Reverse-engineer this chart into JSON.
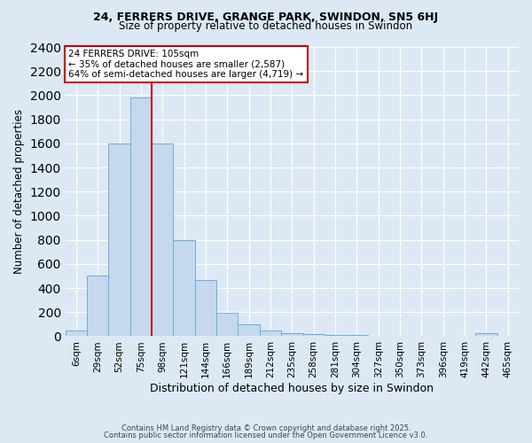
{
  "title1": "24, FERRERS DRIVE, GRANGE PARK, SWINDON, SN5 6HJ",
  "title2": "Size of property relative to detached houses in Swindon",
  "xlabel": "Distribution of detached houses by size in Swindon",
  "ylabel": "Number of detached properties",
  "bar_labels": [
    "6sqm",
    "29sqm",
    "52sqm",
    "75sqm",
    "98sqm",
    "121sqm",
    "144sqm",
    "166sqm",
    "189sqm",
    "212sqm",
    "235sqm",
    "258sqm",
    "281sqm",
    "304sqm",
    "327sqm",
    "350sqm",
    "373sqm",
    "396sqm",
    "419sqm",
    "442sqm",
    "465sqm"
  ],
  "bar_values": [
    50,
    500,
    1600,
    1980,
    1600,
    800,
    470,
    195,
    100,
    45,
    25,
    20,
    8,
    8,
    2,
    2,
    2,
    0,
    0,
    25,
    0
  ],
  "bar_color": "#c5d8ee",
  "bar_edge_color": "#6baed6",
  "vline_x": 3.5,
  "vline_color": "#cc0000",
  "annotation_title": "24 FERRERS DRIVE: 105sqm",
  "annotation_line1": "← 35% of detached houses are smaller (2,587)",
  "annotation_line2": "64% of semi-detached houses are larger (4,719) →",
  "annotation_box_color": "#ffffff",
  "annotation_box_edge": "#cc0000",
  "ylim": [
    0,
    2400
  ],
  "yticks": [
    0,
    200,
    400,
    600,
    800,
    1000,
    1200,
    1400,
    1600,
    1800,
    2000,
    2200,
    2400
  ],
  "background_color": "#dce9f5",
  "grid_color": "#ffffff",
  "footer1": "Contains HM Land Registry data © Crown copyright and database right 2025.",
  "footer2": "Contains public sector information licensed under the Open Government Licence v3.0."
}
